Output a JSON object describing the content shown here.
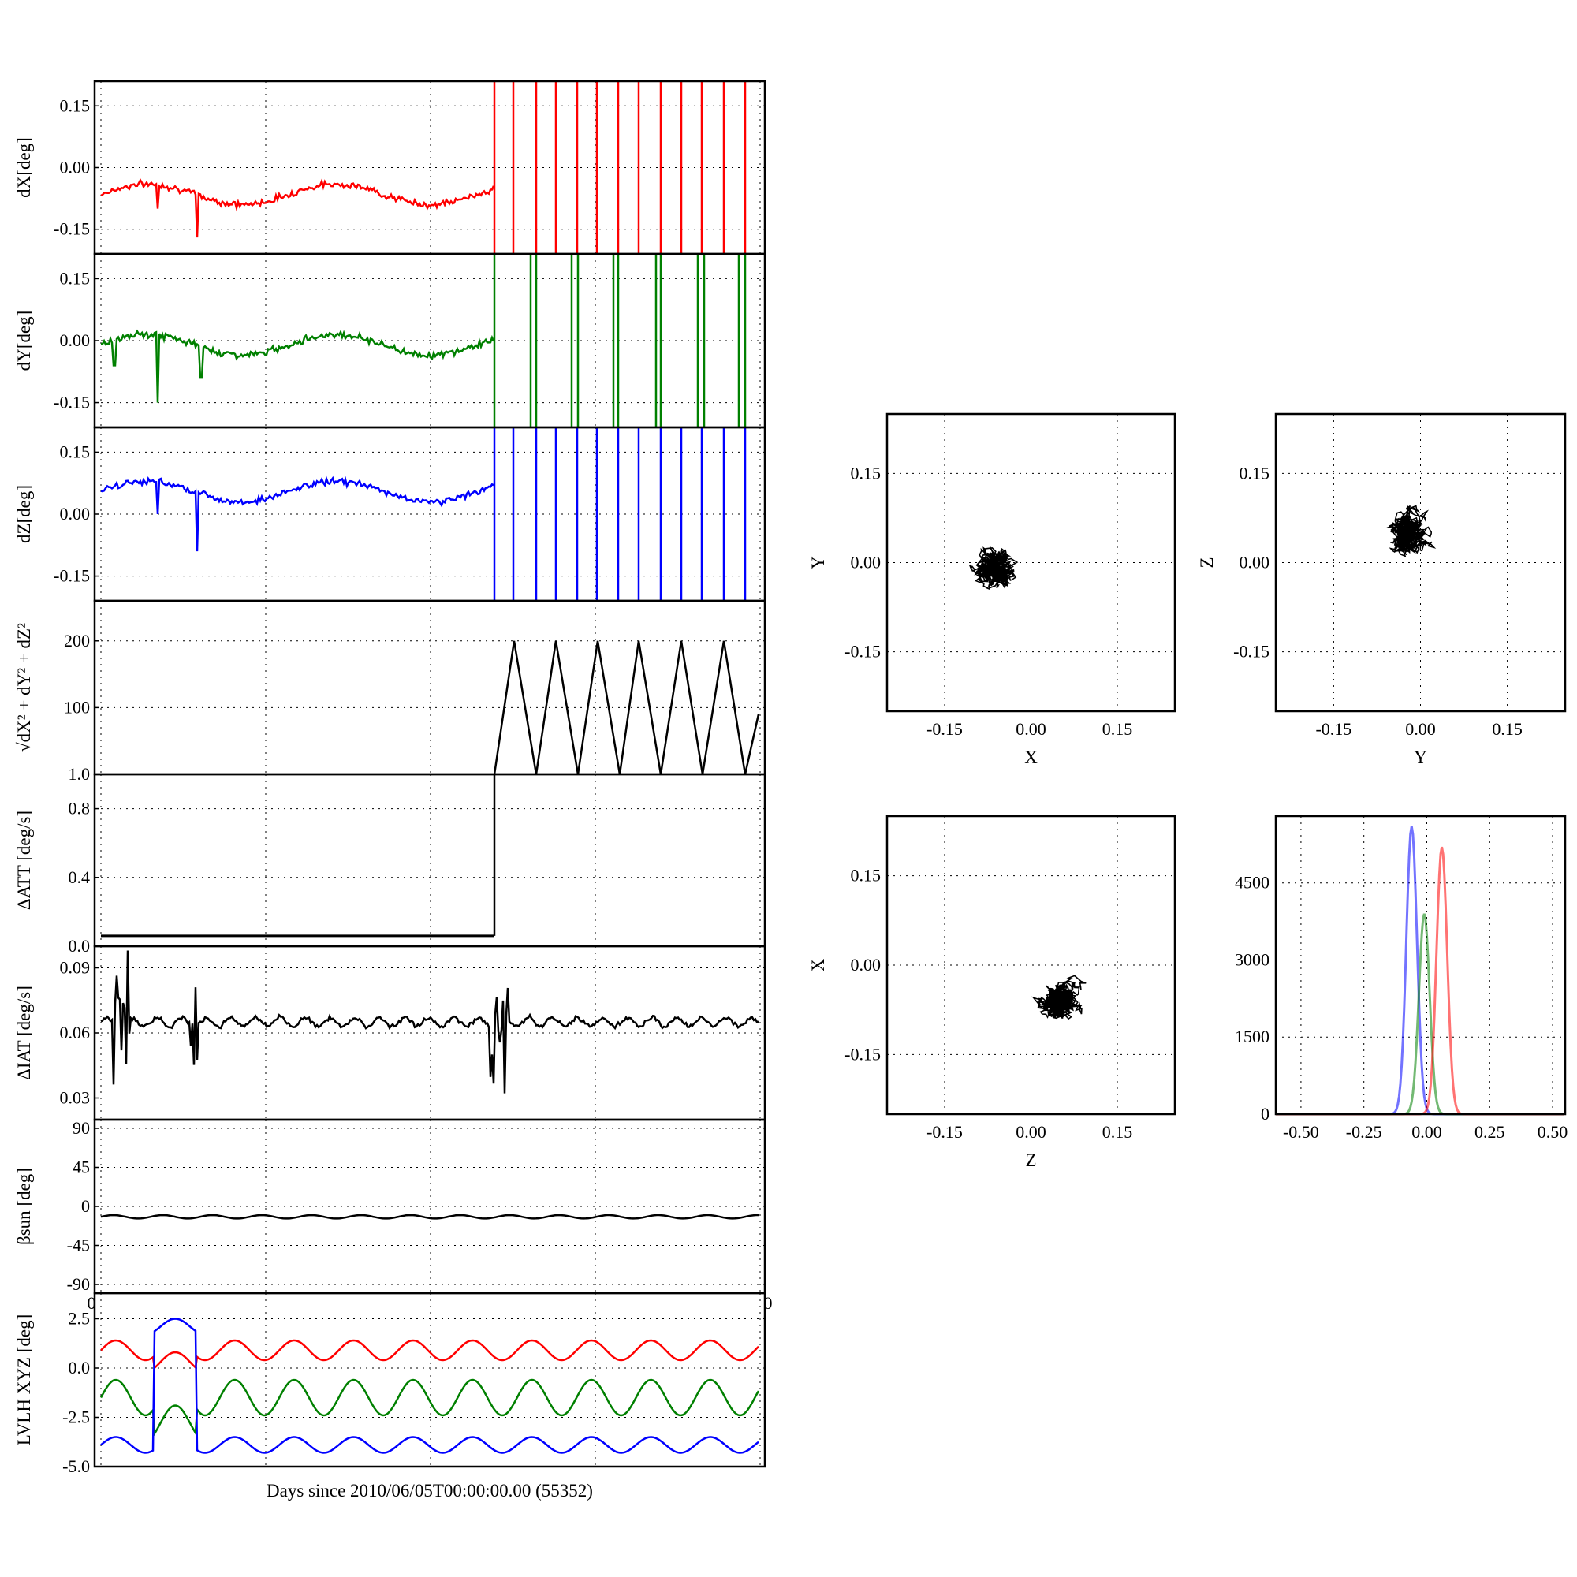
{
  "figure": {
    "xlabel": "Days since 2010/06/05T00:00:00.00 (55352)"
  },
  "left_panels": [
    {
      "id": "dX",
      "ylabel": "dX[deg]",
      "yticks": [
        "0.15",
        "0.00",
        "-0.15"
      ]
    },
    {
      "id": "dY",
      "ylabel": "dY[deg]",
      "yticks": [
        "0.15",
        "0.00",
        "-0.15"
      ]
    },
    {
      "id": "dZ",
      "ylabel": "dZ[deg]",
      "yticks": [
        "0.15",
        "0.00",
        "-0.15"
      ]
    },
    {
      "id": "mag",
      "ylabel": "√dX² + dY² + dZ²",
      "yticks": [
        "200",
        "100",
        "1.0"
      ]
    },
    {
      "id": "datt",
      "ylabel": "ΔATT [deg/s]",
      "yticks": [
        "0.8",
        "0.4",
        "0.0"
      ]
    },
    {
      "id": "diat",
      "ylabel": "ΔIAT [deg/s]",
      "yticks": [
        "0.09",
        "0.06",
        "0.03"
      ]
    },
    {
      "id": "beta",
      "ylabel": "βsun [deg]",
      "yticks": [
        "90",
        "45",
        "0",
        "-45",
        "-90"
      ],
      "xticks": [
        "0",
        "0"
      ]
    },
    {
      "id": "lvlh",
      "ylabel": "LVLH XYZ [deg]",
      "yticks": [
        "2.5",
        "0.0",
        "-2.5",
        "-5.0"
      ]
    }
  ],
  "right_panels": [
    {
      "id": "xy",
      "xlabel": "X",
      "ylabel": "Y",
      "xticks": [
        "-0.15",
        "0.00",
        "0.15"
      ],
      "yticks": [
        "0.15",
        "0.00",
        "-0.15"
      ]
    },
    {
      "id": "yz",
      "xlabel": "Y",
      "ylabel": "Z",
      "xticks": [
        "-0.15",
        "0.00",
        "0.15"
      ],
      "yticks": [
        "0.15",
        "0.00",
        "-0.15"
      ]
    },
    {
      "id": "zx",
      "xlabel": "Z",
      "ylabel": "X",
      "xticks": [
        "-0.15",
        "0.00",
        "0.15"
      ],
      "yticks": [
        "0.15",
        "0.00",
        "-0.15"
      ]
    },
    {
      "id": "hist",
      "xlabel": "",
      "ylabel": "",
      "xticks": [
        "-0.50",
        "-0.25",
        "0.00",
        "0.25",
        "0.50"
      ],
      "yticks": [
        "4500",
        "3000",
        "1500",
        "0"
      ]
    }
  ],
  "colors": {
    "x": "#ff0000",
    "y": "#008000",
    "z": "#0000ff",
    "black": "#000000"
  },
  "chart_data": [
    {
      "type": "line",
      "panel": "dX",
      "ylabel": "dX[deg]",
      "ylim": [
        -0.21,
        0.21
      ],
      "series": [
        {
          "color": "#ff0000",
          "description_values": {
            "baseline_mean": -0.06,
            "oscillation_amplitude": 0.03,
            "jump_fraction": 0.6
          }
        }
      ]
    },
    {
      "type": "line",
      "panel": "dY",
      "ylabel": "dY[deg]",
      "ylim": [
        -0.21,
        0.21
      ],
      "series": [
        {
          "color": "#008000",
          "description_values": {
            "baseline_mean": 0.0,
            "oscillation_amplitude": 0.025,
            "jump_fraction": 0.6
          }
        }
      ]
    },
    {
      "type": "line",
      "panel": "dZ",
      "ylabel": "dZ[deg]",
      "ylim": [
        -0.21,
        0.21
      ],
      "series": [
        {
          "color": "#0000ff",
          "description_values": {
            "baseline_mean": 0.06,
            "oscillation_amplitude": 0.025,
            "jump_fraction": 0.6
          }
        }
      ]
    },
    {
      "type": "line",
      "panel": "mag",
      "ylim": [
        0,
        260
      ],
      "series": [
        {
          "color": "#000000",
          "description_values": {
            "sawtooth_peak": 200,
            "sawtooth_min": 0
          }
        }
      ]
    },
    {
      "type": "line",
      "panel": "datt",
      "ylabel": "ΔATT [deg/s]",
      "ylim": [
        0,
        1.0
      ],
      "series": [
        {
          "color": "#000000",
          "description_values": {
            "baseline": 0.06,
            "spike": 1.0
          }
        }
      ]
    },
    {
      "type": "line",
      "panel": "diat",
      "ylabel": "ΔIAT [deg/s]",
      "ylim": [
        0.02,
        0.1
      ],
      "series": [
        {
          "color": "#000000",
          "description_values": {
            "baseline": 0.065,
            "max": 0.098,
            "min": 0.028
          }
        }
      ]
    },
    {
      "type": "line",
      "panel": "beta",
      "ylim": [
        -100,
        100
      ],
      "series": [
        {
          "color": "#000000",
          "description_values": {
            "baseline": -12
          }
        }
      ]
    },
    {
      "type": "line",
      "panel": "lvlh",
      "ylabel": "LVLH XYZ [deg]",
      "ylim": [
        -5,
        3.8
      ],
      "series": [
        {
          "color": "#ff0000",
          "description_values": {
            "mean": 0.9
          }
        },
        {
          "color": "#008000",
          "description_values": {
            "mean": -1.5
          }
        },
        {
          "color": "#0000ff",
          "description_values": {
            "mean": -3.9
          }
        }
      ]
    },
    {
      "type": "scatter",
      "panel": "xy",
      "xlabel": "X",
      "ylabel": "Y",
      "xlim": [
        -0.25,
        0.25
      ],
      "ylim": [
        -0.25,
        0.25
      ],
      "center": [
        -0.06,
        -0.01
      ]
    },
    {
      "type": "scatter",
      "panel": "yz",
      "xlabel": "Y",
      "ylabel": "Z",
      "xlim": [
        -0.25,
        0.25
      ],
      "ylim": [
        -0.25,
        0.25
      ],
      "center": [
        -0.02,
        0.05
      ]
    },
    {
      "type": "scatter",
      "panel": "zx",
      "xlabel": "Z",
      "ylabel": "X",
      "xlim": [
        -0.25,
        0.25
      ],
      "ylim": [
        -0.25,
        0.25
      ],
      "center": [
        0.05,
        -0.06
      ]
    },
    {
      "type": "area",
      "panel": "hist",
      "xlim": [
        -0.6,
        0.55
      ],
      "ylim": [
        0,
        5800
      ],
      "series": [
        {
          "color": "#0000ff",
          "peak_x": -0.06,
          "peak_y": 5600
        },
        {
          "color": "#008000",
          "peak_x": -0.01,
          "peak_y": 3900
        },
        {
          "color": "#ff0000",
          "peak_x": 0.06,
          "peak_y": 5200
        }
      ]
    }
  ]
}
